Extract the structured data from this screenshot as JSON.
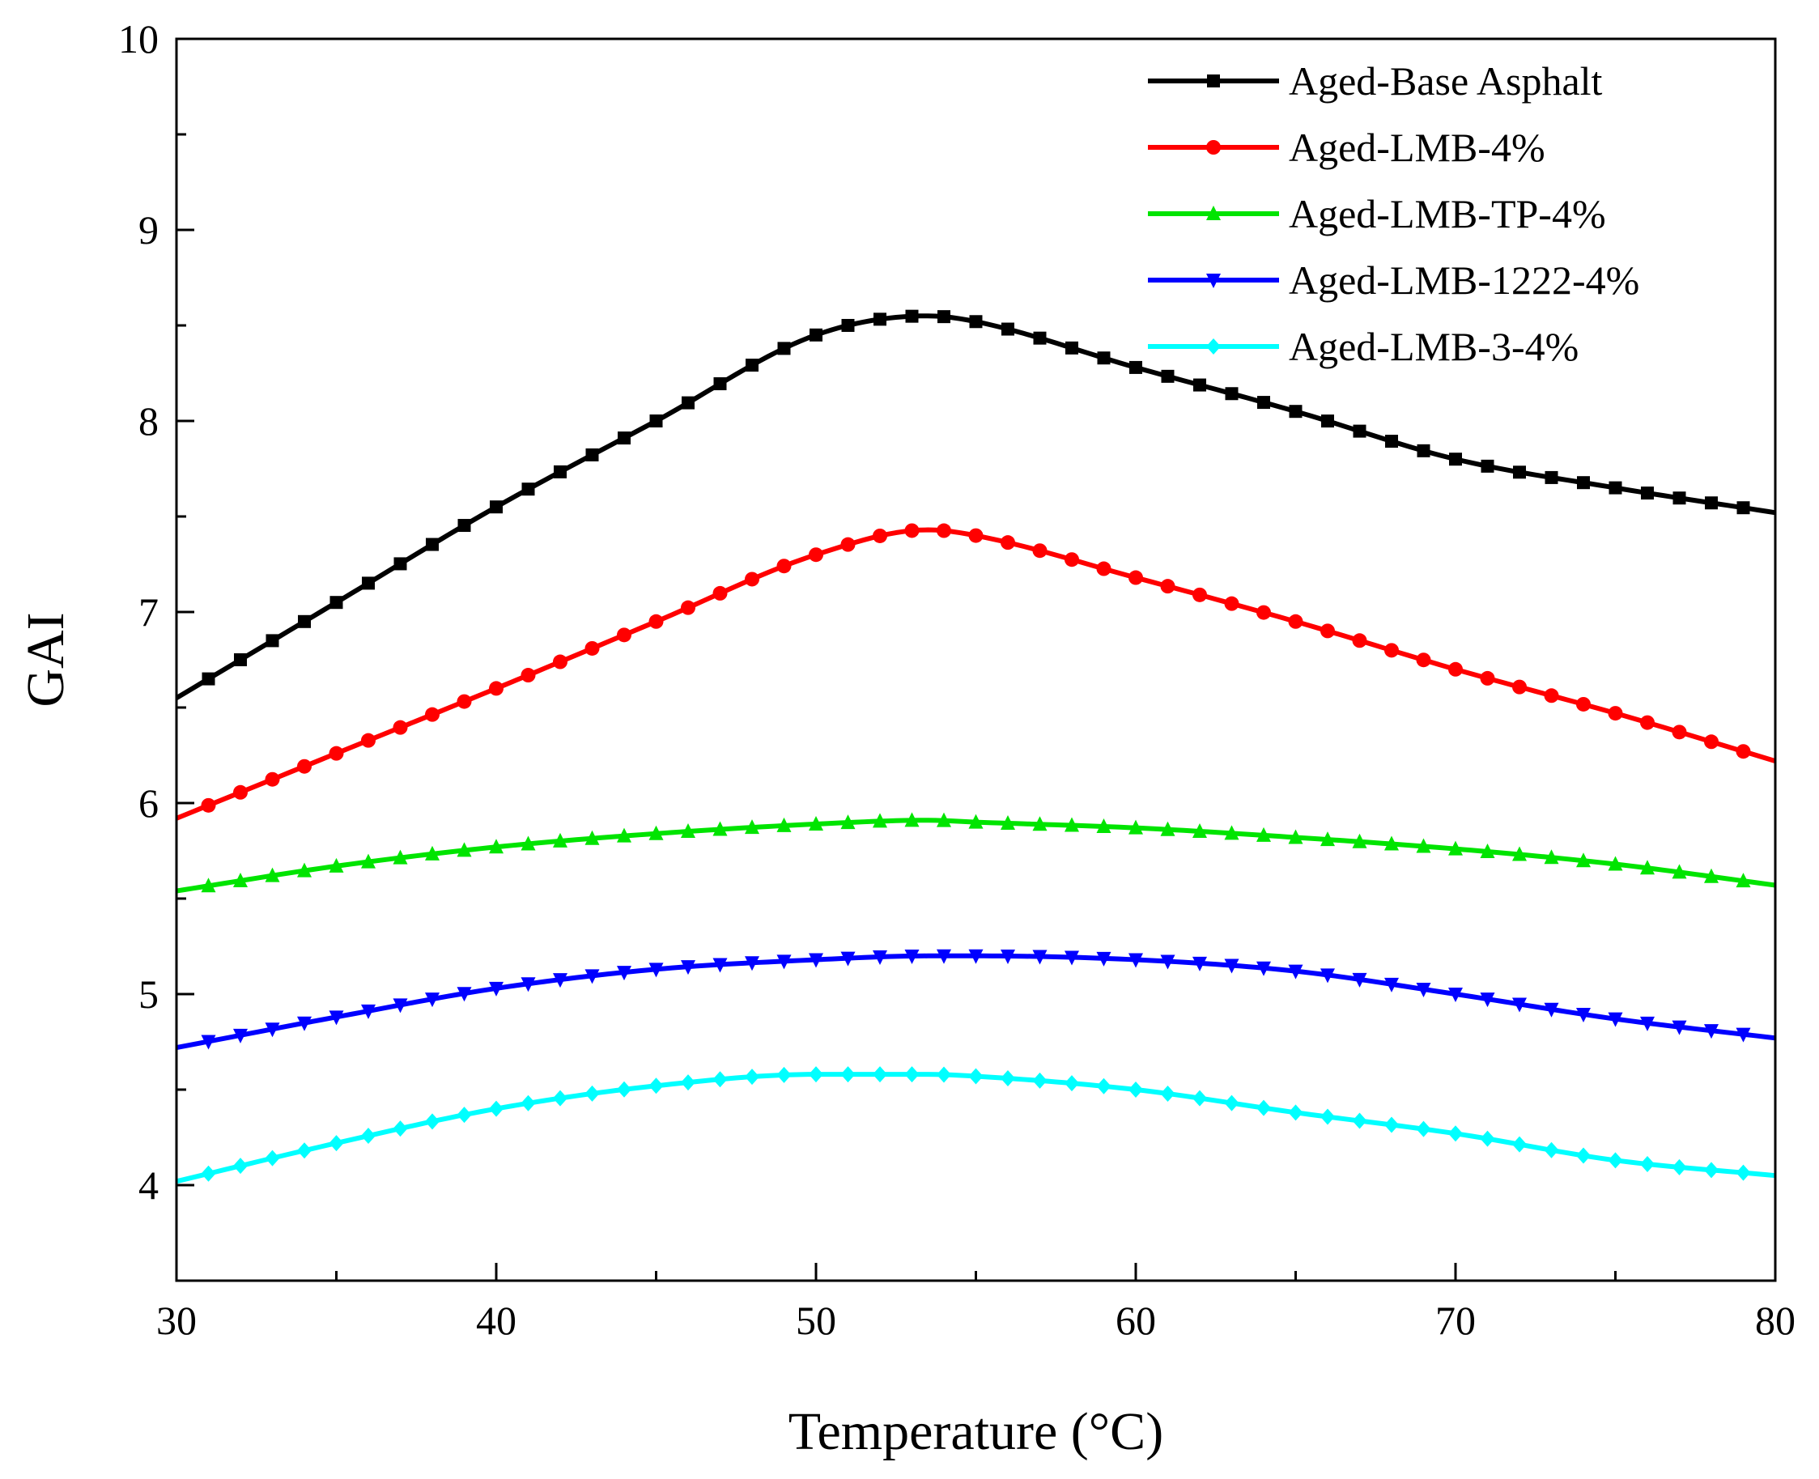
{
  "chart_data": {
    "type": "line",
    "title": "",
    "xlabel": "Temperature (°C)",
    "ylabel": "GAI",
    "xlim": [
      30,
      80
    ],
    "ylim": [
      3.5,
      10
    ],
    "xticks": [
      30,
      40,
      50,
      60,
      70,
      80
    ],
    "yticks": [
      4,
      5,
      6,
      7,
      8,
      9,
      10
    ],
    "x_minor_step": 5,
    "y_minor_step": 0.5,
    "grid": false,
    "legend_position": "top-right",
    "x": [
      30,
      35,
      40,
      45,
      50,
      53.5,
      55,
      60,
      65,
      70,
      75,
      80
    ],
    "series": [
      {
        "name": "Aged-Base Asphalt",
        "color": "#000000",
        "marker": "square",
        "values": [
          6.55,
          7.05,
          7.55,
          8.0,
          8.45,
          8.55,
          8.52,
          8.28,
          8.05,
          7.8,
          7.65,
          7.52
        ]
      },
      {
        "name": "Aged-LMB-4%",
        "color": "#ff0000",
        "marker": "circle",
        "values": [
          5.92,
          6.26,
          6.6,
          6.95,
          7.3,
          7.43,
          7.4,
          7.18,
          6.95,
          6.7,
          6.47,
          6.22
        ]
      },
      {
        "name": "Aged-LMB-TP-4%",
        "color": "#00e400",
        "marker": "triangle-up",
        "values": [
          5.54,
          5.67,
          5.77,
          5.84,
          5.89,
          5.91,
          5.9,
          5.87,
          5.82,
          5.76,
          5.68,
          5.57
        ]
      },
      {
        "name": "Aged-LMB-1222-4%",
        "color": "#0000ff",
        "marker": "triangle-down",
        "values": [
          4.72,
          4.88,
          5.03,
          5.13,
          5.18,
          5.2,
          5.2,
          5.18,
          5.12,
          5.0,
          4.87,
          4.77
        ]
      },
      {
        "name": "Aged-LMB-3-4%",
        "color": "#00ffff",
        "marker": "diamond",
        "values": [
          4.02,
          4.22,
          4.4,
          4.52,
          4.58,
          4.58,
          4.57,
          4.5,
          4.38,
          4.27,
          4.13,
          4.05
        ]
      }
    ]
  }
}
